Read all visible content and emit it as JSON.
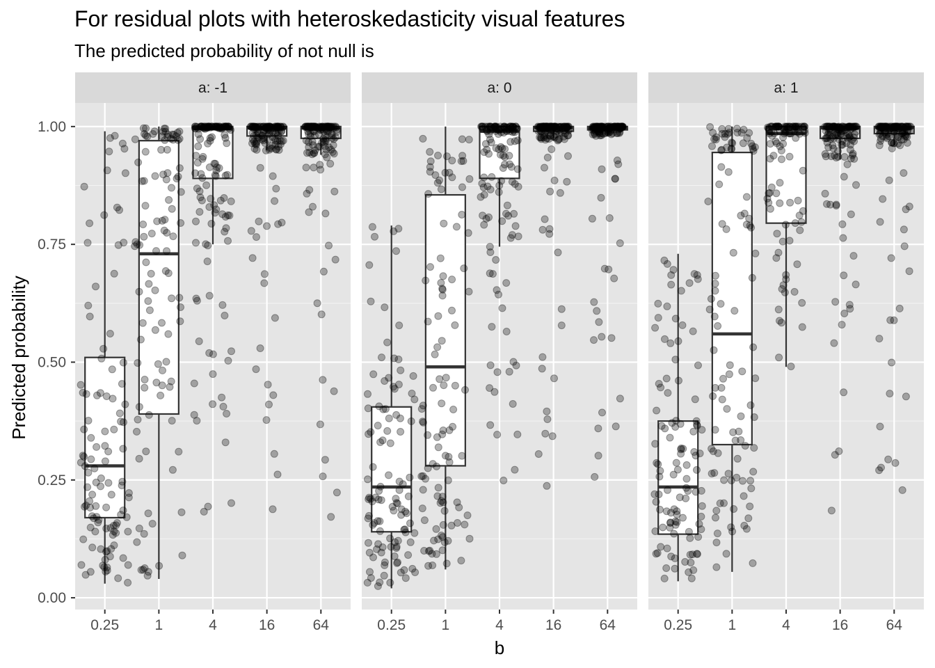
{
  "chart_data": {
    "type": "boxplot",
    "title": "For residual plots with heteroskedasticity visual features",
    "subtitle": "The predicted probability of not null is",
    "xlabel": "b",
    "ylabel": "Predicted probability",
    "x_categories": [
      "0.25",
      "1",
      "4",
      "16",
      "64"
    ],
    "ylim": [
      -0.025,
      1.05
    ],
    "y_ticks": [
      0.0,
      0.25,
      0.5,
      0.75,
      1.0
    ],
    "y_tick_labels": [
      "0.00",
      "0.25",
      "0.50",
      "0.75",
      "1.00"
    ],
    "grid": true,
    "colors": {
      "panel_background": "#e5e5e5",
      "strip_background": "#d9d9d9",
      "grid_major": "#ffffff",
      "box_fill": "#ffffff",
      "box_line": "#333333",
      "points": "#000000"
    },
    "facets": [
      {
        "label": "a: -1",
        "boxes": [
          {
            "x": "0.25",
            "q1": 0.17,
            "median": 0.28,
            "q3": 0.51,
            "whisker_low": 0.03,
            "whisker_high": 0.99,
            "n_points": 110,
            "point_spread": 0.85
          },
          {
            "x": "1",
            "q1": 0.39,
            "median": 0.73,
            "q3": 0.97,
            "whisker_low": 0.04,
            "whisker_high": 1.0,
            "n_points": 110,
            "point_spread": 0.85
          },
          {
            "x": "4",
            "q1": 0.89,
            "median": 0.995,
            "q3": 1.0,
            "whisker_low": 0.75,
            "whisker_high": 1.0,
            "n_points": 110,
            "point_spread": 0.45
          },
          {
            "x": "16",
            "q1": 0.98,
            "median": 0.997,
            "q3": 1.0,
            "whisker_low": 0.95,
            "whisker_high": 1.0,
            "n_points": 110,
            "point_spread": 0.25
          },
          {
            "x": "64",
            "q1": 0.975,
            "median": 0.997,
            "q3": 1.0,
            "whisker_low": 0.94,
            "whisker_high": 1.0,
            "n_points": 110,
            "point_spread": 0.25
          }
        ]
      },
      {
        "label": "a: 0",
        "boxes": [
          {
            "x": "0.25",
            "q1": 0.14,
            "median": 0.235,
            "q3": 0.405,
            "whisker_low": 0.02,
            "whisker_high": 0.79,
            "n_points": 110,
            "point_spread": 0.85
          },
          {
            "x": "1",
            "q1": 0.28,
            "median": 0.49,
            "q3": 0.855,
            "whisker_low": 0.06,
            "whisker_high": 1.0,
            "n_points": 110,
            "point_spread": 0.85
          },
          {
            "x": "4",
            "q1": 0.89,
            "median": 0.99,
            "q3": 1.0,
            "whisker_low": 0.745,
            "whisker_high": 1.0,
            "n_points": 110,
            "point_spread": 0.45
          },
          {
            "x": "16",
            "q1": 0.99,
            "median": 0.998,
            "q3": 1.0,
            "whisker_low": 0.97,
            "whisker_high": 1.0,
            "n_points": 110,
            "point_spread": 0.2
          },
          {
            "x": "64",
            "q1": 0.993,
            "median": 0.998,
            "q3": 1.0,
            "whisker_low": 0.98,
            "whisker_high": 1.0,
            "n_points": 110,
            "point_spread": 0.2
          }
        ]
      },
      {
        "label": "a: 1",
        "boxes": [
          {
            "x": "0.25",
            "q1": 0.135,
            "median": 0.235,
            "q3": 0.375,
            "whisker_low": 0.035,
            "whisker_high": 0.73,
            "n_points": 110,
            "point_spread": 0.85
          },
          {
            "x": "1",
            "q1": 0.325,
            "median": 0.56,
            "q3": 0.945,
            "whisker_low": 0.055,
            "whisker_high": 1.0,
            "n_points": 110,
            "point_spread": 0.85
          },
          {
            "x": "4",
            "q1": 0.795,
            "median": 0.985,
            "q3": 1.0,
            "whisker_low": 0.49,
            "whisker_high": 1.0,
            "n_points": 110,
            "point_spread": 0.45
          },
          {
            "x": "16",
            "q1": 0.975,
            "median": 0.997,
            "q3": 1.0,
            "whisker_low": 0.93,
            "whisker_high": 1.0,
            "n_points": 110,
            "point_spread": 0.25
          },
          {
            "x": "64",
            "q1": 0.985,
            "median": 0.998,
            "q3": 1.0,
            "whisker_low": 0.96,
            "whisker_high": 1.0,
            "n_points": 110,
            "point_spread": 0.25
          }
        ]
      }
    ]
  }
}
